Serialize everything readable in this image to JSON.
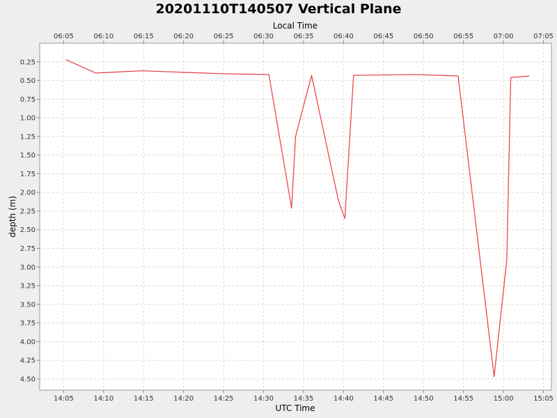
{
  "chart_data": {
    "type": "line",
    "title": "20201110T140507 Vertical Plane",
    "xlabel": "UTC Time",
    "x2label": "Local Time",
    "ylabel": "depth (m)",
    "y_inverted": true,
    "ylim": [
      0.0,
      4.65
    ],
    "xlim": [
      "14:02:00",
      "15:06:00"
    ],
    "x_ticks": [
      "14:05",
      "14:10",
      "14:15",
      "14:20",
      "14:25",
      "14:30",
      "14:35",
      "14:40",
      "14:45",
      "14:50",
      "14:55",
      "15:00",
      "15:05"
    ],
    "x2_ticks": [
      "06:05",
      "06:10",
      "06:15",
      "06:20",
      "06:25",
      "06:30",
      "06:35",
      "06:40",
      "06:45",
      "06:50",
      "06:55",
      "07:00",
      "07:05"
    ],
    "y_ticks": [
      "0.25",
      "0.50",
      "0.75",
      "1.00",
      "1.25",
      "1.50",
      "1.75",
      "2.00",
      "2.25",
      "2.50",
      "2.75",
      "3.00",
      "3.25",
      "3.50",
      "3.75",
      "4.00",
      "4.25",
      "4.50"
    ],
    "grid": true,
    "series": [
      {
        "color": "#e8484c",
        "x": [
          "14:05:17",
          "14:09:00",
          "14:14:50",
          "14:20:00",
          "14:25:00",
          "14:30:40",
          "14:33:30",
          "14:34:00",
          "14:36:00",
          "14:39:20",
          "14:40:10",
          "14:41:15",
          "14:49:00",
          "14:54:20",
          "14:58:50",
          "15:00:25",
          "15:00:55",
          "15:03:15"
        ],
        "y": [
          0.22,
          0.4,
          0.37,
          0.39,
          0.41,
          0.42,
          2.21,
          1.25,
          0.43,
          2.1,
          2.35,
          0.43,
          0.42,
          0.44,
          4.47,
          2.9,
          0.46,
          0.44
        ]
      }
    ]
  }
}
